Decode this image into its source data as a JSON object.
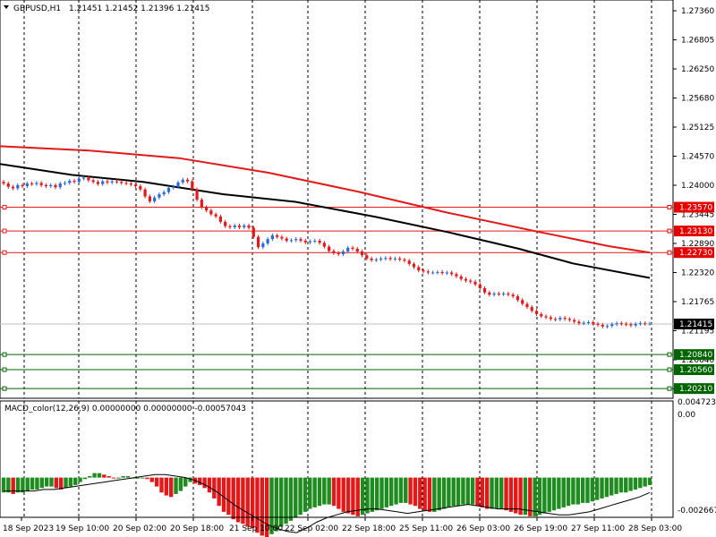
{
  "header": {
    "symbol": "GBPUSD,H1",
    "ohlc": "1.21451 1.21452 1.21396 1.21415"
  },
  "macd_header": "MACD_color(12,26,9) 0.00000000 0.00000000 -0.00057043",
  "price_axis": {
    "ticks": [
      "1.27360",
      "1.26805",
      "1.26250",
      "1.25680",
      "1.25125",
      "1.24570",
      "1.24000",
      "1.23445",
      "1.22890",
      "1.22320",
      "1.21765",
      "1.21195",
      "1.20640",
      "1.20085"
    ],
    "current_price": "1.21415",
    "level_tags": [
      {
        "label": "1.23570",
        "color": "#e60000"
      },
      {
        "label": "1.23130",
        "color": "#e60000"
      },
      {
        "label": "1.22730",
        "color": "#e60000"
      },
      {
        "label": "1.20840",
        "color": "#006400"
      },
      {
        "label": "1.20560",
        "color": "#006400"
      },
      {
        "label": "1.20210",
        "color": "#006400"
      }
    ]
  },
  "macd_axis": {
    "ticks": [
      "0.004723",
      "0.00",
      "-0.002667"
    ]
  },
  "time_axis": [
    "18 Sep 2023",
    "19 Sep 10:00",
    "20 Sep 02:00",
    "20 Sep 18:00",
    "21 Sep 10:00",
    "22 Sep 02:00",
    "22 Sep 18:00",
    "25 Sep 11:00",
    "26 Sep 03:00",
    "26 Sep 19:00",
    "27 Sep 11:00",
    "28 Sep 03:00"
  ],
  "colors": {
    "up": "#2a6ad9",
    "down": "#e31919",
    "ma_black": "#000000",
    "ma_red": "#e31919",
    "hist_up": "#1e8c1e",
    "hist_down": "#e31919"
  },
  "chart_data": {
    "type": "candlestick",
    "title": "GBPUSD,H1",
    "price_range": [
      1.2003,
      1.2741
    ],
    "close_path": [
      1.2401,
      1.2395,
      1.2392,
      1.2398,
      1.2396,
      1.2401,
      1.24,
      1.2402,
      1.2398,
      1.2396,
      1.2398,
      1.2394,
      1.2401,
      1.2402,
      1.2406,
      1.2404,
      1.241,
      1.2412,
      1.2407,
      1.2404,
      1.24,
      1.2405,
      1.2403,
      1.2405,
      1.2404,
      1.2402,
      1.2401,
      1.2399,
      1.2396,
      1.239,
      1.2377,
      1.2368,
      1.2375,
      1.2381,
      1.2385,
      1.2393,
      1.2395,
      1.2403,
      1.2408,
      1.2405,
      1.239,
      1.2371,
      1.2357,
      1.2351,
      1.2344,
      1.234,
      1.233,
      1.2322,
      1.232,
      1.2323,
      1.232,
      1.2323,
      1.2319,
      1.2302,
      1.2283,
      1.229,
      1.2298,
      1.2305,
      1.2302,
      1.2299,
      1.2295,
      1.2296,
      1.2298,
      1.2295,
      1.2292,
      1.2294,
      1.2295,
      1.2291,
      1.2284,
      1.2276,
      1.2272,
      1.227,
      1.2275,
      1.2282,
      1.228,
      1.2275,
      1.2268,
      1.2262,
      1.2259,
      1.226,
      1.2262,
      1.2263,
      1.2261,
      1.2262,
      1.226,
      1.2258,
      1.2252,
      1.2246,
      1.224,
      1.2238,
      1.2236,
      1.2236,
      1.2237,
      1.2235,
      1.2236,
      1.2233,
      1.2229,
      1.2224,
      1.2221,
      1.2219,
      1.2214,
      1.2207,
      1.2199,
      1.2195,
      1.2197,
      1.2196,
      1.2197,
      1.2195,
      1.2192,
      1.2185,
      1.2178,
      1.2172,
      1.2165,
      1.2159,
      1.2155,
      1.2153,
      1.215,
      1.2149,
      1.2152,
      1.215,
      1.2148,
      1.2145,
      1.2142,
      1.2143,
      1.2144,
      1.2141,
      1.2139,
      1.2136,
      1.2137,
      1.214,
      1.2142,
      1.2141,
      1.214,
      1.2138,
      1.2141,
      1.2142,
      1.2141,
      1.21415
    ],
    "ma_black": [
      [
        0,
        1.2437
      ],
      [
        80,
        1.2417
      ],
      [
        160,
        1.2404
      ],
      [
        250,
        1.2381
      ],
      [
        330,
        1.2367
      ],
      [
        420,
        1.2339
      ],
      [
        500,
        1.2311
      ],
      [
        580,
        1.228
      ],
      [
        640,
        1.2253
      ],
      [
        726,
        1.2226
      ]
    ],
    "ma_red": [
      [
        0,
        1.247
      ],
      [
        100,
        1.2462
      ],
      [
        200,
        1.2448
      ],
      [
        300,
        1.2421
      ],
      [
        400,
        1.2386
      ],
      [
        500,
        1.2347
      ],
      [
        600,
        1.2312
      ],
      [
        680,
        1.2285
      ],
      [
        726,
        1.2273
      ]
    ],
    "horizontal_levels": [
      1.2357,
      1.2313,
      1.2273,
      1.2084,
      1.2056,
      1.2021
    ],
    "macd": {
      "range": [
        -0.002667,
        0.004723
      ],
      "histogram": [
        -0.001,
        -0.001,
        -0.0011,
        -0.001,
        -0.001,
        -0.0009,
        -0.0008,
        -0.0008,
        -0.0007,
        -0.0006,
        -0.0006,
        -0.0007,
        -0.0008,
        -0.0007,
        -0.0006,
        -0.0005,
        -0.0003,
        -0.0001,
        0.0001,
        0.0003,
        0.0003,
        0.0002,
        0.0001,
        0.0,
        0.0,
        0.0001,
        0.0001,
        0.0,
        0.0,
        0.0,
        -0.0001,
        -0.0003,
        -0.0006,
        -0.001,
        -0.0012,
        -0.0013,
        -0.0011,
        -0.0009,
        -0.0006,
        -0.0003,
        -0.0004,
        -0.0005,
        -0.0007,
        -0.001,
        -0.0014,
        -0.0019,
        -0.0023,
        -0.0025,
        -0.0028,
        -0.003,
        -0.0031,
        -0.0033,
        -0.0034,
        -0.0037,
        -0.0039,
        -0.0041,
        -0.0038,
        -0.0036,
        -0.0033,
        -0.0031,
        -0.0029,
        -0.0027,
        -0.0025,
        -0.0023,
        -0.0021,
        -0.002,
        -0.0019,
        -0.0018,
        -0.0018,
        -0.0019,
        -0.0021,
        -0.0023,
        -0.0024,
        -0.0025,
        -0.0026,
        -0.0025,
        -0.0024,
        -0.0023,
        -0.0022,
        -0.0021,
        -0.002,
        -0.0019,
        -0.0018,
        -0.0017,
        -0.0017,
        -0.0018,
        -0.0019,
        -0.0021,
        -0.0022,
        -0.0023,
        -0.0023,
        -0.0022,
        -0.0021,
        -0.002,
        -0.0019,
        -0.0019,
        -0.0018,
        -0.0018,
        -0.0018,
        -0.0019,
        -0.002,
        -0.0021,
        -0.0021,
        -0.0021,
        -0.0021,
        -0.0022,
        -0.0023,
        -0.0024,
        -0.0025,
        -0.0025,
        -0.0026,
        -0.0026,
        -0.0025,
        -0.0024,
        -0.0023,
        -0.0022,
        -0.0021,
        -0.002,
        -0.0019,
        -0.0018,
        -0.0018,
        -0.0017,
        -0.0017,
        -0.0016,
        -0.0015,
        -0.0014,
        -0.0013,
        -0.0012,
        -0.0011,
        -0.001,
        -0.001,
        -0.0009,
        -0.0008,
        -0.0007,
        -0.0006,
        -0.0005
      ],
      "signal": [
        -0.0009,
        -0.0009,
        -0.0009,
        -0.0009,
        -0.0008,
        -0.0008,
        -0.0007,
        -0.0006,
        -0.0005,
        -0.0004,
        -0.0003,
        -0.0002,
        -0.0001,
        0.0,
        0.0001,
        0.0002,
        0.0002,
        0.0001,
        0.0,
        -0.0002,
        -0.0005,
        -0.0009,
        -0.0014,
        -0.0019,
        -0.0023,
        -0.0027,
        -0.0031,
        -0.0034,
        -0.0036,
        -0.0037,
        -0.0034,
        -0.003,
        -0.0027,
        -0.0025,
        -0.0023,
        -0.0022,
        -0.0021,
        -0.0021,
        -0.0022,
        -0.0023,
        -0.0024,
        -0.0023,
        -0.0022,
        -0.0021,
        -0.002,
        -0.0019,
        -0.0018,
        -0.0019,
        -0.002,
        -0.0021,
        -0.0021,
        -0.0021,
        -0.0022,
        -0.0023,
        -0.0024,
        -0.0025,
        -0.0025,
        -0.0024,
        -0.0023,
        -0.0021,
        -0.0019,
        -0.0017,
        -0.0015,
        -0.0013,
        -0.001
      ]
    }
  }
}
